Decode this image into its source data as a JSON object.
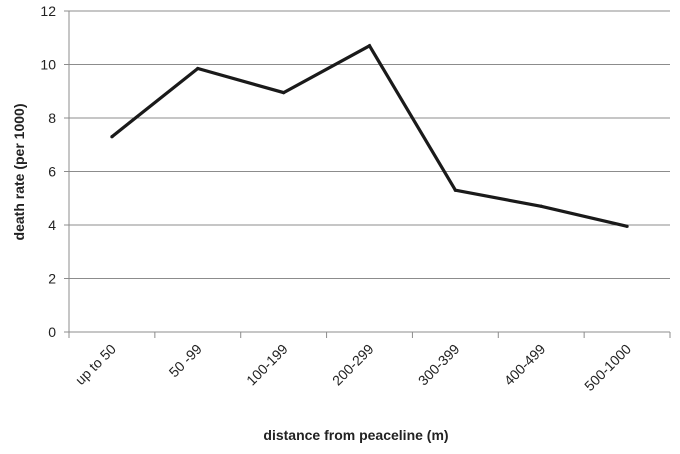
{
  "chart_data": {
    "type": "line",
    "title": "",
    "xlabel": "distance from peaceline (m)",
    "ylabel": "death rate (per 1000)",
    "categories": [
      "up to 50",
      "50 -99",
      "100-199",
      "200-299",
      "300-399",
      "400-499",
      "500-1000"
    ],
    "series": [
      {
        "values": [
          7.3,
          9.85,
          8.95,
          10.7,
          5.3,
          4.7,
          3.95
        ]
      }
    ],
    "ylim": [
      0,
      12
    ],
    "yticks": [
      "0",
      "2",
      "4",
      "6",
      "8",
      "10",
      "12"
    ],
    "grid": "horizontal",
    "legend": "none",
    "colors": {
      "line": "#1a1a1a",
      "grid": "#8c8c8c",
      "axis": "#8c8c8c"
    }
  }
}
